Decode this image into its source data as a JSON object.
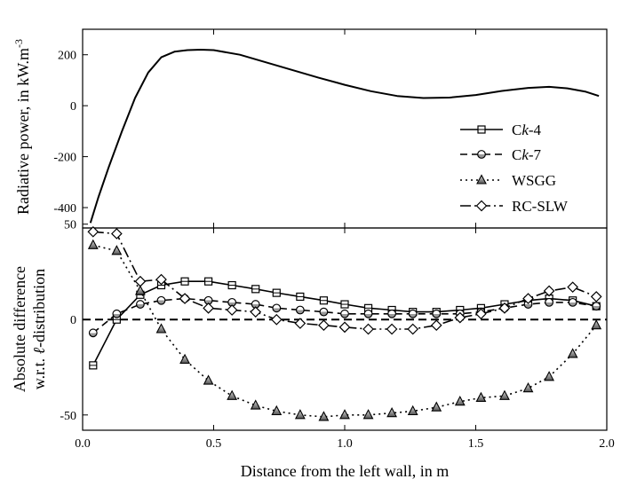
{
  "chart_data": [
    {
      "type": "line",
      "ylabel": "Radiative power, in kW.m",
      "ylabel_sup": "-3",
      "xlim": [
        0.0,
        2.0
      ],
      "ylim": [
        -480,
        300
      ],
      "yticks": [
        200,
        0,
        -200,
        -400
      ],
      "ytick_labels": [
        "200",
        "0",
        "-200",
        "-400"
      ],
      "grid": false,
      "series": [
        {
          "x": [
            0.03,
            0.06,
            0.1,
            0.15,
            0.2,
            0.25,
            0.3,
            0.35,
            0.4,
            0.45,
            0.5,
            0.6,
            0.7,
            0.8,
            0.9,
            1.0,
            1.1,
            1.2,
            1.3,
            1.4,
            1.5,
            1.6,
            1.7,
            1.78,
            1.85,
            1.92,
            1.97
          ],
          "y": [
            -460,
            -360,
            -240,
            -100,
            30,
            130,
            190,
            212,
            218,
            220,
            218,
            200,
            170,
            140,
            110,
            82,
            57,
            38,
            30,
            32,
            42,
            58,
            70,
            74,
            68,
            55,
            38
          ]
        }
      ]
    },
    {
      "type": "line",
      "xlabel": "Distance from the left wall, in m",
      "ylabel_line1": "Absolute difference",
      "ylabel_line2_prefix": "w.r.t. ",
      "ylabel_line2_italic": "ℓ",
      "ylabel_line2_suffix": "-distribution",
      "xlim": [
        0.0,
        2.0
      ],
      "ylim": [
        -58,
        48
      ],
      "xticks": [
        0.0,
        0.5,
        1.0,
        1.5,
        2.0
      ],
      "xtick_labels": [
        "0.0",
        "0.5",
        "1.0",
        "1.5",
        "2.0"
      ],
      "yticks": [
        50,
        0,
        -50
      ],
      "ytick_labels": [
        "50",
        "0",
        "-50"
      ],
      "reference_line": 0,
      "legend_position": "top-right of lower panel",
      "grid": false,
      "series": [
        {
          "name_prefix": "C",
          "name_italic": "k",
          "name_suffix": "-4",
          "dash": "",
          "marker": "square",
          "x": [
            0.04,
            0.13,
            0.22,
            0.3,
            0.39,
            0.48,
            0.57,
            0.66,
            0.74,
            0.83,
            0.92,
            1.0,
            1.09,
            1.18,
            1.26,
            1.35,
            1.44,
            1.52,
            1.61,
            1.7,
            1.78,
            1.87,
            1.96
          ],
          "y": [
            -24,
            0,
            13,
            18,
            20,
            20,
            18,
            16,
            14,
            12,
            10,
            8,
            6,
            5,
            4,
            4,
            5,
            6,
            8,
            10,
            11,
            10,
            7
          ]
        },
        {
          "name_prefix": "C",
          "name_italic": "k",
          "name_suffix": "-7",
          "dash": "8,5",
          "marker": "circle",
          "x": [
            0.04,
            0.13,
            0.22,
            0.3,
            0.39,
            0.48,
            0.57,
            0.66,
            0.74,
            0.83,
            0.92,
            1.0,
            1.09,
            1.18,
            1.26,
            1.35,
            1.44,
            1.52,
            1.61,
            1.7,
            1.78,
            1.87,
            1.96
          ],
          "y": [
            -7,
            3,
            8,
            10,
            11,
            10,
            9,
            8,
            6,
            5,
            4,
            3,
            3,
            3,
            3,
            3,
            3,
            4,
            6,
            8,
            9,
            9,
            7
          ]
        },
        {
          "name": "WSGG",
          "dash": "2,4",
          "marker": "triangle",
          "x": [
            0.04,
            0.13,
            0.22,
            0.3,
            0.39,
            0.48,
            0.57,
            0.66,
            0.74,
            0.83,
            0.92,
            1.0,
            1.09,
            1.18,
            1.26,
            1.35,
            1.44,
            1.52,
            1.61,
            1.7,
            1.78,
            1.87,
            1.96
          ],
          "y": [
            39,
            36,
            15,
            -5,
            -21,
            -32,
            -40,
            -45,
            -48,
            -50,
            -51,
            -50,
            -50,
            -49,
            -48,
            -46,
            -43,
            -41,
            -40,
            -36,
            -30,
            -18,
            -3
          ]
        },
        {
          "name": "RC-SLW",
          "dash": "12,4,2,4",
          "marker": "diamond",
          "x": [
            0.04,
            0.13,
            0.22,
            0.3,
            0.39,
            0.48,
            0.57,
            0.66,
            0.74,
            0.83,
            0.92,
            1.0,
            1.09,
            1.18,
            1.26,
            1.35,
            1.44,
            1.52,
            1.61,
            1.7,
            1.78,
            1.87,
            1.96
          ],
          "y": [
            46,
            45,
            20,
            21,
            11,
            6,
            5,
            4,
            0,
            -2,
            -3,
            -4,
            -5,
            -5,
            -5,
            -3,
            1,
            3,
            6,
            11,
            15,
            17,
            12
          ]
        }
      ]
    }
  ]
}
